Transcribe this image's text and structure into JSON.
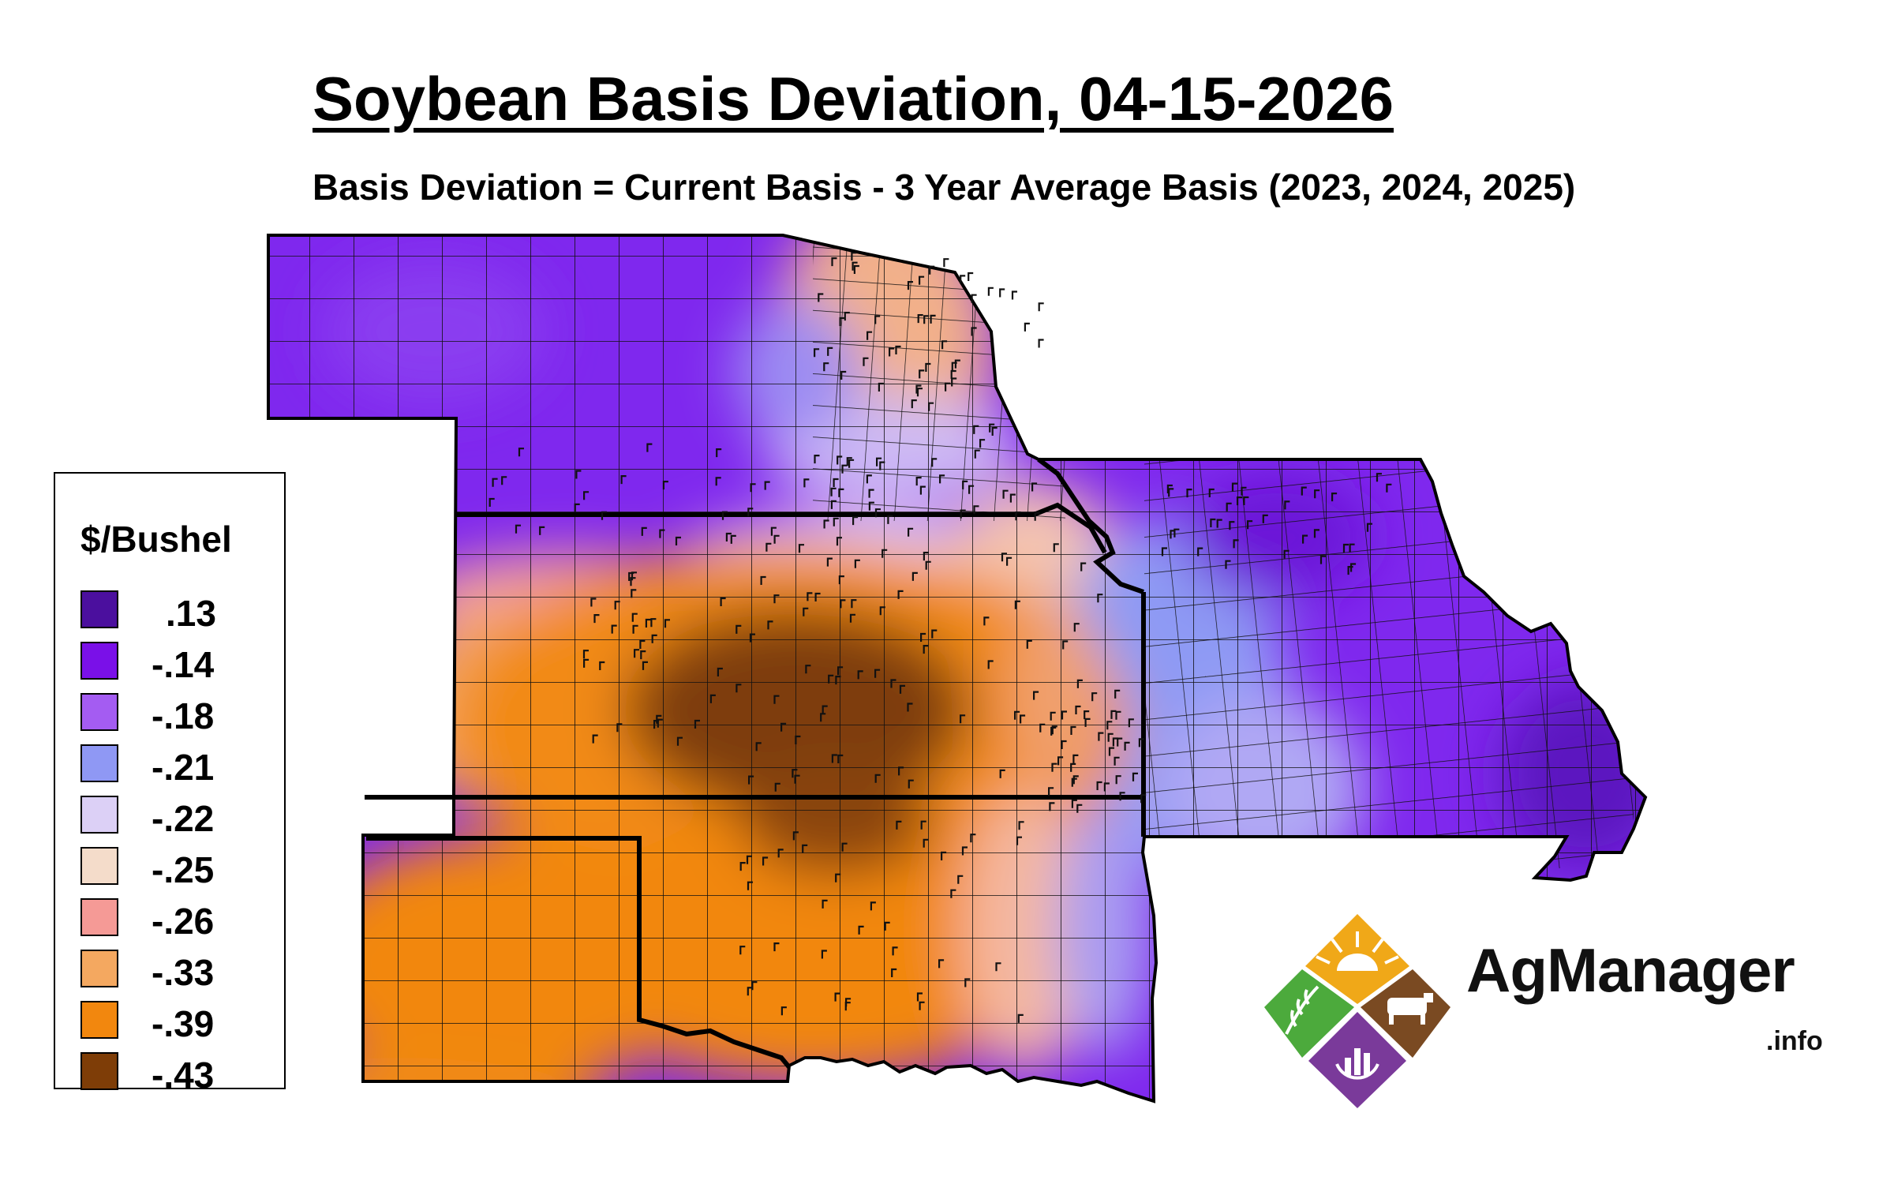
{
  "map": {
    "title": "Soybean Basis Deviation, 04-15-2026",
    "subtitle": "Basis Deviation = Current Basis - 3 Year Average Basis (2023, 2024, 2025)"
  },
  "legend": {
    "title": "$/Bushel",
    "items": [
      {
        "label": ".13",
        "value": 0.13,
        "color": "#4b0f9e"
      },
      {
        "label": "-.14",
        "value": -0.14,
        "color": "#7a10e8"
      },
      {
        "label": "-.18",
        "value": -0.18,
        "color": "#a45cf2"
      },
      {
        "label": "-.21",
        "value": -0.21,
        "color": "#8f98f4"
      },
      {
        "label": "-.22",
        "value": -0.22,
        "color": "#dcd0f6"
      },
      {
        "label": "-.25",
        "value": -0.25,
        "color": "#f4dcca"
      },
      {
        "label": "-.26",
        "value": -0.26,
        "color": "#f59a96"
      },
      {
        "label": "-.33",
        "value": -0.33,
        "color": "#f4a860"
      },
      {
        "label": "-.39",
        "value": -0.39,
        "color": "#f2870e"
      },
      {
        "label": "-.43",
        "value": -0.43,
        "color": "#7e3d07"
      }
    ]
  },
  "logo": {
    "name": "AgManager",
    "suffix": ".info",
    "icon": "agmanager-logo-icon",
    "colors": {
      "sun": "#f0a818",
      "wheat": "#4caa3c",
      "livestock": "#7a4a22",
      "chart": "#7a3a9a"
    }
  }
}
